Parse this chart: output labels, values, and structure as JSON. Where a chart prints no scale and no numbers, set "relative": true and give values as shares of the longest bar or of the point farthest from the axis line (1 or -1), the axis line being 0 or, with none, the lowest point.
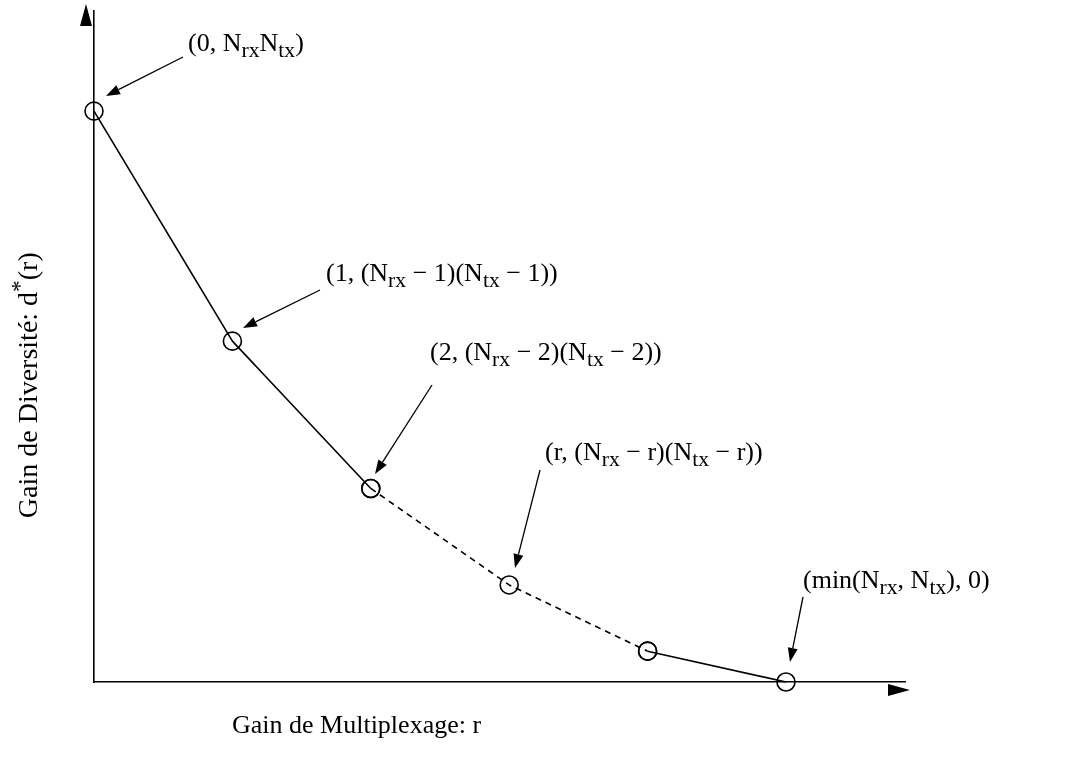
{
  "chart_data": {
    "type": "line",
    "relative": true,
    "categories": [
      null,
      null,
      null,
      null,
      null,
      null
    ],
    "series": [
      {
        "color": "#000000",
        "line_style": "solid",
        "values": [
          1,
          0.597,
          0.339,
          null,
          null,
          null
        ]
      },
      {
        "color": "#000000",
        "line_style": "dashed",
        "values": [
          null,
          null,
          0.339,
          0.17,
          0.054,
          null
        ]
      },
      {
        "color": "#000000",
        "line_style": "solid",
        "values": [
          null,
          null,
          null,
          null,
          0.054,
          0
        ]
      }
    ],
    "marker": "circle",
    "grid": false,
    "legend": false,
    "tick_labels": false,
    "xlabel": "Gain de Multiplexage: r",
    "ylabel": "Gain de Diversité: d$^{*}$(r)",
    "annotations": [
      "(0, N$_{rx}$N$_{tx}$)",
      "(1, (N$_{rx}$ − 1)(N$_{tx}$ − 1))",
      "(2, (N$_{rx}$ − 2)(N$_{tx}$ − 2))",
      "(r, (N$_{rx}$ − r)(N$_{tx}$ − r))",
      "(min(N$_{rx}$, N$_{tx}$), 0)"
    ]
  }
}
